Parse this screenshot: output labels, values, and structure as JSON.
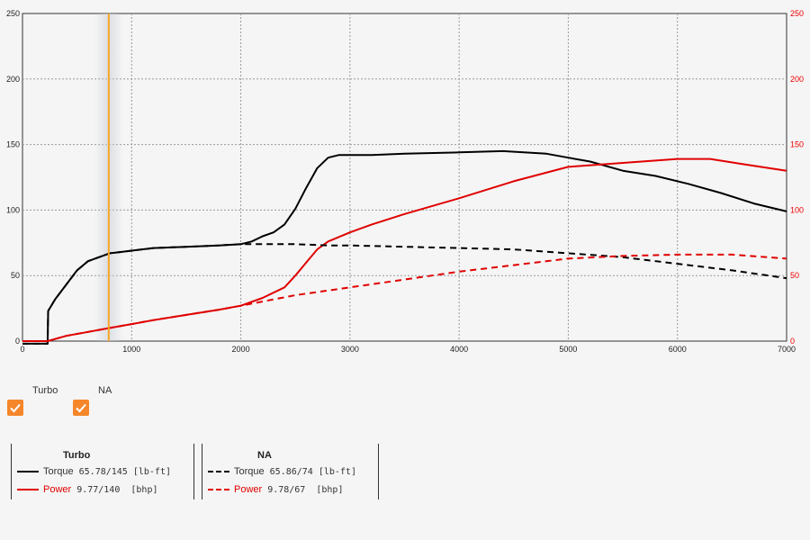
{
  "colors": {
    "torque": "#000000",
    "power": "#e00000",
    "cursor": "#f5a623",
    "checkbox": "#f5862a",
    "grid": "#999999"
  },
  "toggles": [
    {
      "label": "Turbo",
      "checked": true,
      "icon": "check-icon"
    },
    {
      "label": "NA",
      "checked": true,
      "icon": "check-icon"
    }
  ],
  "legend": {
    "turbo": {
      "title": "Turbo",
      "torque_label": "Torque",
      "torque_value": "65.78/145 [lb-ft]",
      "power_label": "Power",
      "power_value": "9.77/140  [bhp]"
    },
    "na": {
      "title": "NA",
      "torque_label": "Torque",
      "torque_value": "65.86/74 [lb-ft]",
      "power_label": "Power",
      "power_value": "9.78/67  [bhp]"
    }
  },
  "chart_data": {
    "type": "line",
    "xlim": [
      0,
      7000
    ],
    "ylim": [
      0,
      250
    ],
    "y2lim": [
      0,
      250
    ],
    "x_ticks": [
      0,
      1000,
      2000,
      3000,
      4000,
      5000,
      6000,
      7000
    ],
    "y_ticks": [
      0,
      50,
      100,
      150,
      200,
      250
    ],
    "y2_ticks": [
      0,
      50,
      100,
      150,
      200,
      250
    ],
    "grid": true,
    "cursor_x": 790,
    "series": [
      {
        "name": "Turbo",
        "quantity": "torque",
        "style": "solid",
        "axis": "left",
        "x": [
          0,
          230,
          235,
          300,
          400,
          500,
          600,
          700,
          800,
          900,
          1000,
          1200,
          1500,
          1800,
          2000,
          2100,
          2200,
          2300,
          2400,
          2500,
          2600,
          2700,
          2800,
          2900,
          3000,
          3200,
          3500,
          4000,
          4400,
          4800,
          5000,
          5200,
          5500,
          5800,
          6100,
          6400,
          6700,
          7000
        ],
        "y": [
          -2,
          -2,
          23,
          32,
          43,
          54,
          61,
          64,
          67,
          68,
          69,
          71,
          72,
          73,
          74,
          76,
          80,
          83,
          89,
          101,
          117,
          132,
          140,
          142,
          142,
          142,
          143,
          144,
          145,
          143,
          140,
          137,
          130,
          126,
          120,
          113,
          105,
          99
        ]
      },
      {
        "name": "Turbo",
        "quantity": "power",
        "style": "solid",
        "axis": "right",
        "x": [
          0,
          230,
          400,
          600,
          800,
          1000,
          1200,
          1500,
          1800,
          2000,
          2200,
          2400,
          2500,
          2600,
          2700,
          2800,
          3000,
          3200,
          3500,
          4000,
          4500,
          5000,
          5500,
          6000,
          6300,
          6600,
          7000
        ],
        "y": [
          0,
          0,
          4,
          7,
          10,
          13,
          16,
          20,
          24,
          27,
          33,
          41,
          50,
          60,
          70,
          76,
          83,
          89,
          97,
          109,
          122,
          133,
          136,
          139,
          139,
          135,
          130
        ]
      },
      {
        "name": "NA",
        "quantity": "torque",
        "style": "dashed",
        "axis": "left",
        "x": [
          0,
          230,
          235,
          300,
          400,
          500,
          600,
          700,
          800,
          900,
          1000,
          1200,
          1500,
          1800,
          2000,
          2200,
          2500,
          2800,
          3000,
          3500,
          4000,
          4500,
          5000,
          5500,
          6000,
          6500,
          7000
        ],
        "y": [
          -2,
          -2,
          23,
          32,
          43,
          54,
          61,
          64,
          67,
          68,
          69,
          71,
          72,
          73,
          74,
          74,
          74,
          73,
          73,
          72,
          71,
          70,
          67,
          64,
          59,
          54,
          48
        ]
      },
      {
        "name": "NA",
        "quantity": "power",
        "style": "dashed",
        "axis": "right",
        "x": [
          0,
          230,
          400,
          600,
          800,
          1000,
          1200,
          1500,
          1800,
          2000,
          2500,
          3000,
          3500,
          4000,
          4500,
          5000,
          5500,
          6000,
          6500,
          7000
        ],
        "y": [
          0,
          0,
          4,
          7,
          10,
          13,
          16,
          20,
          24,
          27,
          35,
          41,
          47,
          53,
          58,
          63,
          65,
          66,
          66,
          63
        ]
      }
    ]
  }
}
